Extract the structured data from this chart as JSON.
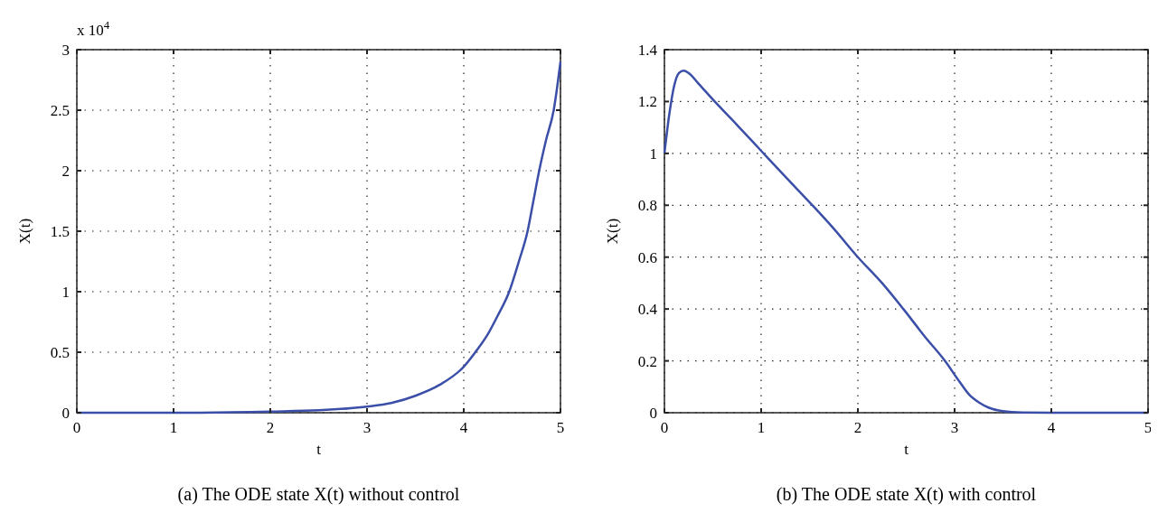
{
  "chart_data": [
    {
      "type": "line",
      "title": "(a)  The ODE state X(t) without control",
      "xlabel": "t",
      "ylabel": "X(t)",
      "annotations": [
        "x 10$^{4}$"
      ],
      "xlim": [
        0,
        5
      ],
      "xticks": [
        0,
        1,
        2,
        3,
        4,
        5
      ],
      "ylim": [
        0,
        3
      ],
      "yticks": [
        0,
        0.5,
        1,
        1.5,
        2,
        2.5,
        3
      ],
      "grid": true,
      "line_style": "solid",
      "series": [
        {
          "color": "#3b4fa8",
          "x": [
            0,
            1,
            2,
            2.5,
            3,
            3.25,
            3.5,
            3.75,
            4,
            4.12,
            4.25,
            4.35,
            4.47,
            4.57,
            4.66,
            4.72,
            4.78,
            4.85,
            4.93,
            5
          ],
          "values": [
            0,
            0,
            0.01,
            0.02,
            0.05,
            0.08,
            0.14,
            0.23,
            0.38,
            0.5,
            0.65,
            0.8,
            1,
            1.25,
            1.5,
            1.75,
            2,
            2.25,
            2.5,
            2.9
          ]
        }
      ]
    },
    {
      "type": "line",
      "title": "(b)  The ODE state X(t) with control",
      "xlabel": "t",
      "ylabel": "X(t)",
      "xlim": [
        0,
        5
      ],
      "xticks": [
        0,
        1,
        2,
        3,
        4,
        5
      ],
      "ylim": [
        0,
        1.4
      ],
      "yticks": [
        0,
        0.2,
        0.4,
        0.6,
        0.8,
        1,
        1.2,
        1.4
      ],
      "grid": true,
      "line_style": "solid",
      "series": [
        {
          "color": "#3b4fa8",
          "x": [
            0,
            0.05,
            0.1,
            0.15,
            0.2,
            0.25,
            0.35,
            0.52,
            0.75,
            1,
            1.25,
            1.53,
            1.75,
            2,
            2.25,
            2.47,
            2.7,
            2.9,
            3.05,
            3.15,
            3.25,
            3.35,
            3.5,
            3.7,
            4,
            4.5,
            5
          ],
          "values": [
            1,
            1.15,
            1.26,
            1.31,
            1.319,
            1.31,
            1.27,
            1.2,
            1.11,
            1.01,
            0.91,
            0.8,
            0.71,
            0.6,
            0.5,
            0.4,
            0.29,
            0.2,
            0.12,
            0.07,
            0.04,
            0.02,
            0.006,
            0.001,
            0,
            0,
            0
          ]
        }
      ]
    }
  ]
}
